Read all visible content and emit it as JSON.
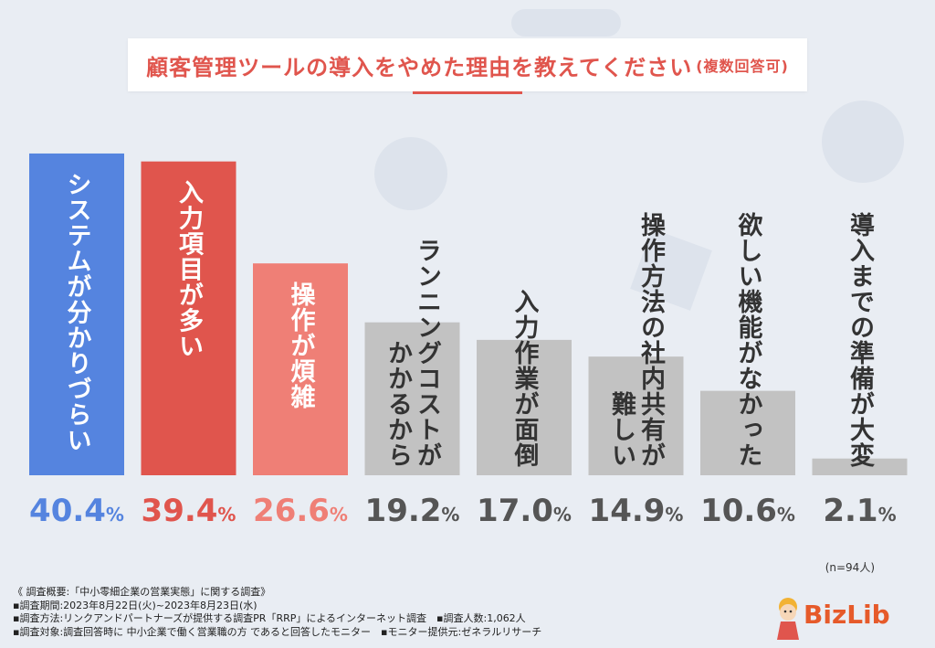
{
  "title": {
    "main": "顧客管理ツールの導入をやめた理由を教えてください",
    "note": "(複数回答可)"
  },
  "chart_data": {
    "type": "bar",
    "title": "顧客管理ツールの導入をやめた理由を教えてください(複数回答可)",
    "unit": "%",
    "categories": [
      [
        "システムが分かりづらい"
      ],
      [
        "入力項目が多い"
      ],
      [
        "操作が煩雑"
      ],
      [
        "ランニングコストが",
        "かかるから"
      ],
      [
        "入力作業が面倒"
      ],
      [
        "操作方法の社内共有が",
        "難しい"
      ],
      [
        "欲しい機能がなかった"
      ],
      [
        "導入までの準備が大変"
      ]
    ],
    "values": [
      40.4,
      39.4,
      26.6,
      19.2,
      17.0,
      14.9,
      10.6,
      2.1
    ],
    "value_labels": [
      "40.4",
      "39.4",
      "26.6",
      "19.2",
      "17.0",
      "14.9",
      "10.6",
      "2.1"
    ],
    "colors": [
      "#5584df",
      "#e0554d",
      "#ef7f76",
      "#c2c2c2",
      "#c2c2c2",
      "#c2c2c2",
      "#c2c2c2",
      "#c2c2c2"
    ],
    "label_colors": [
      "#5584df",
      "#e0554d",
      "#ef7f76",
      "#555555",
      "#555555",
      "#555555",
      "#555555",
      "#555555"
    ],
    "ylim": [
      0,
      42
    ],
    "grid": false,
    "legend": "none"
  },
  "sample_note": "(n=94人)",
  "footer": {
    "line1": "《 調査概要:「中小零細企業の営業実態」に関する調査》",
    "line2": "▪調査期間:2023年8月22日(火)~2023年8月23日(水)",
    "line3": "▪調査方法:リンクアンドパートナーズが提供する調査PR「RRP」によるインターネット調査　▪調査人数:1,062人",
    "line4": "▪調査対象:調査回答時に 中小企業で働く営業職の方 であると回答したモニター　▪モニター提供元:ゼネラルリサーチ"
  },
  "logo": {
    "text": "BizLib"
  }
}
